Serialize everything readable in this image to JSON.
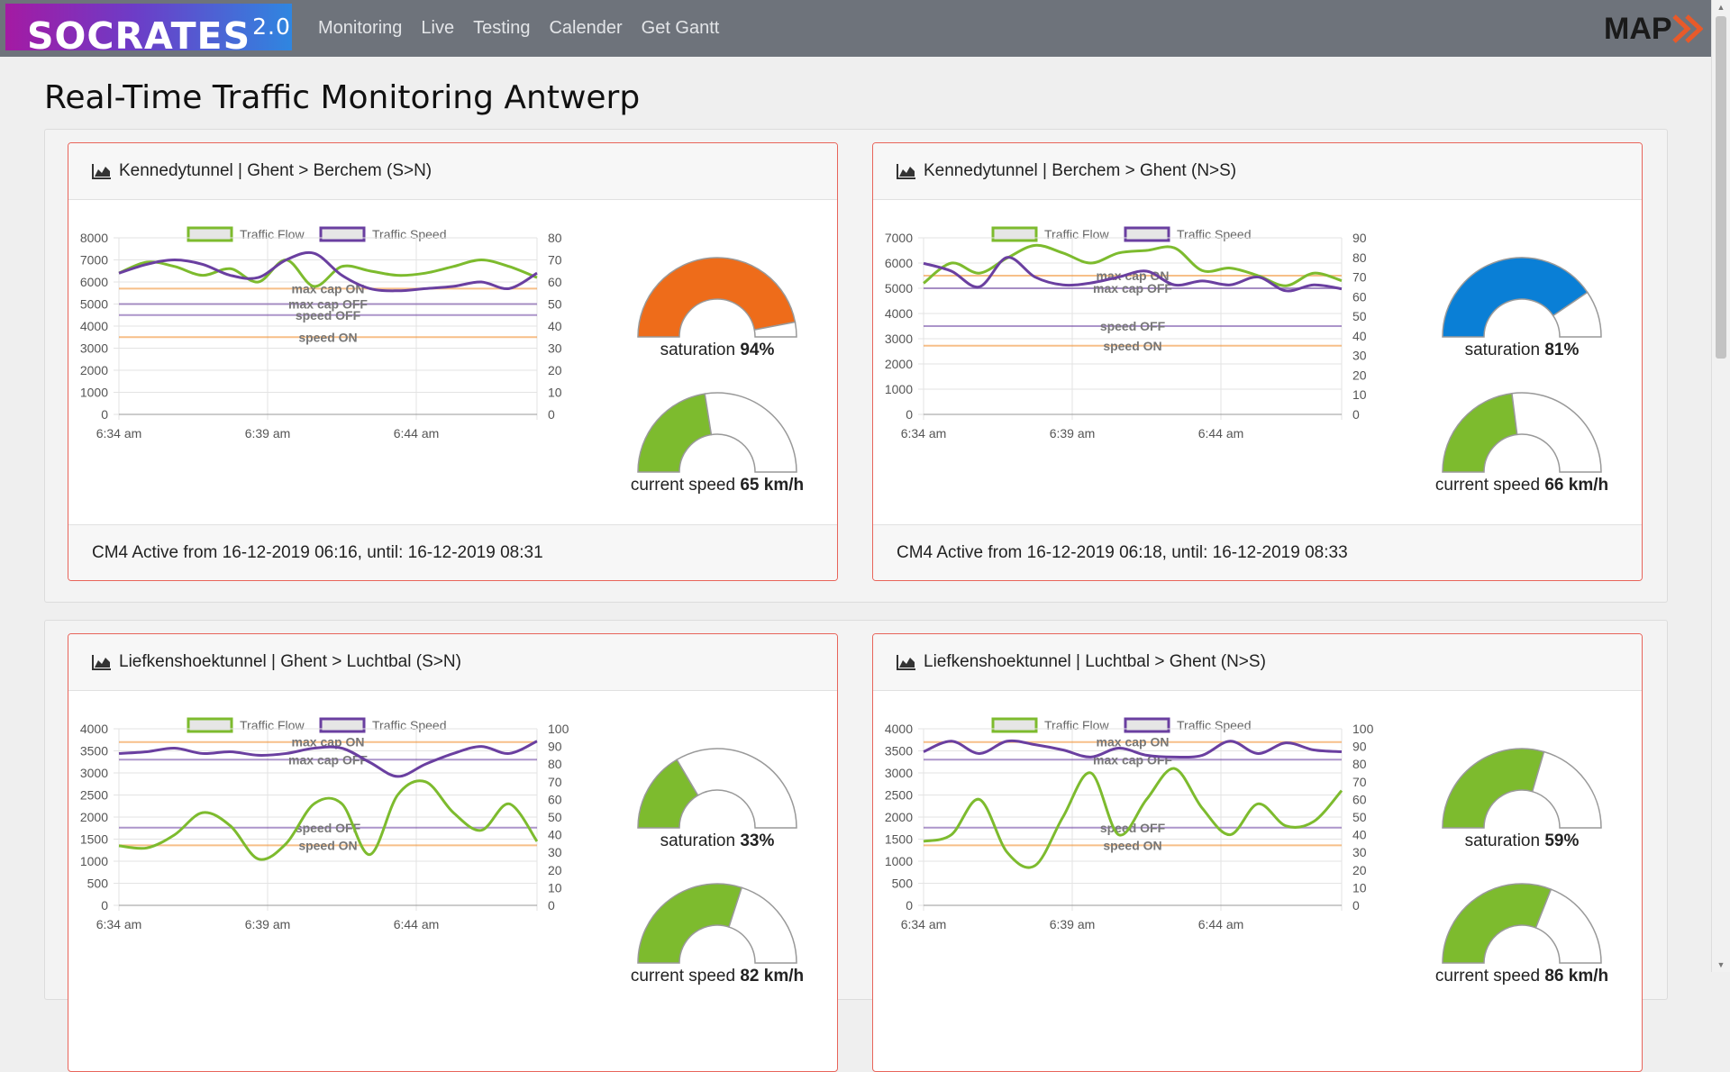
{
  "app": {
    "brand": "SOCRATES",
    "brand_version": "2.0",
    "logo_text": "MAP",
    "nav": [
      "Monitoring",
      "Live",
      "Testing",
      "Calender",
      "Get Gantt"
    ]
  },
  "page_title": "Real-Time Traffic Monitoring Antwerp",
  "colors": {
    "flow": "#7dbb2e",
    "speed": "#6a3fa0",
    "orange": "#f28c28",
    "gauge_orange": "#ee6c1a",
    "gauge_blue": "#0a7fd6",
    "gauge_green": "#7dbb2e"
  },
  "legend": {
    "flow": "Traffic Flow",
    "speed": "Traffic Speed"
  },
  "cards": [
    {
      "title": "Kennedytunnel | Ghent > Berchem (S>N)",
      "footer": "CM4 Active from 16-12-2019 06:16, until: 16-12-2019 08:31",
      "saturation_label": "saturation",
      "saturation_value": "94%",
      "saturation_fraction": 0.94,
      "saturation_color": "#ee6c1a",
      "speed_label": "current speed",
      "speed_value": "65 km/h",
      "speed_fraction": 0.45,
      "chart_data": {
        "type": "line",
        "x_ticks": [
          "6:34 am",
          "6:39 am",
          "6:44 am"
        ],
        "y_left_ticks": [
          "8000",
          "7000",
          "6000",
          "5000",
          "4000",
          "3000",
          "2000",
          "1000",
          "0"
        ],
        "y_right_ticks": [
          "80",
          "70",
          "60",
          "50",
          "40",
          "30",
          "20",
          "10",
          "0"
        ],
        "ylim_left": [
          0,
          8000
        ],
        "ylim_right": [
          0,
          80
        ],
        "series": [
          {
            "name": "Traffic Flow",
            "axis": "left",
            "values": [
              6400,
              6900,
              6700,
              6300,
              6600,
              6000,
              7000,
              5800,
              6700,
              6500,
              6300,
              6400,
              6700,
              7000,
              6700,
              6200
            ]
          },
          {
            "name": "Traffic Speed",
            "axis": "right",
            "values": [
              64,
              68,
              70,
              68,
              63,
              62,
              70,
              73,
              63,
              57,
              56,
              57,
              58,
              60,
              57,
              64
            ]
          }
        ],
        "thresholds": [
          {
            "label": "max cap ON",
            "axis": "left",
            "value": 5700,
            "color": "#f28c28"
          },
          {
            "label": "max cap OFF",
            "axis": "left",
            "value": 5000,
            "color": "#6a3fa0"
          },
          {
            "label": "speed OFF",
            "axis": "right",
            "value": 45,
            "color": "#6a3fa0"
          },
          {
            "label": "speed ON",
            "axis": "right",
            "value": 35,
            "color": "#f28c28"
          }
        ]
      }
    },
    {
      "title": "Kennedytunnel | Berchem > Ghent (N>S)",
      "footer": "CM4 Active from 16-12-2019 06:18, until: 16-12-2019 08:33",
      "saturation_label": "saturation",
      "saturation_value": "81%",
      "saturation_fraction": 0.81,
      "saturation_color": "#0a7fd6",
      "speed_label": "current speed",
      "speed_value": "66 km/h",
      "speed_fraction": 0.46,
      "chart_data": {
        "type": "line",
        "x_ticks": [
          "6:34 am",
          "6:39 am",
          "6:44 am"
        ],
        "y_left_ticks": [
          "7000",
          "6000",
          "5000",
          "4000",
          "3000",
          "2000",
          "1000",
          "0"
        ],
        "y_right_ticks": [
          "90",
          "80",
          "70",
          "60",
          "50",
          "40",
          "30",
          "20",
          "10",
          "0"
        ],
        "ylim_left": [
          0,
          7000
        ],
        "ylim_right": [
          0,
          90
        ],
        "series": [
          {
            "name": "Traffic Flow",
            "axis": "left",
            "values": [
              5200,
              6000,
              5600,
              6200,
              6700,
              6400,
              6000,
              6400,
              6500,
              6600,
              5700,
              5800,
              5500,
              5100,
              5600,
              5300
            ]
          },
          {
            "name": "Traffic Speed",
            "axis": "right",
            "values": [
              77,
              73,
              65,
              80,
              70,
              66,
              67,
              70,
              73,
              66,
              68,
              66,
              70,
              63,
              66,
              64
            ]
          }
        ],
        "thresholds": [
          {
            "label": "max cap ON",
            "axis": "left",
            "value": 5500,
            "color": "#f28c28"
          },
          {
            "label": "max cap OFF",
            "axis": "left",
            "value": 5000,
            "color": "#6a3fa0"
          },
          {
            "label": "speed OFF",
            "axis": "right",
            "value": 45,
            "color": "#6a3fa0"
          },
          {
            "label": "speed ON",
            "axis": "right",
            "value": 35,
            "color": "#f28c28"
          }
        ]
      }
    },
    {
      "title": "Liefkenshoektunnel | Ghent > Luchtbal (S>N)",
      "footer": "",
      "saturation_label": "saturation",
      "saturation_value": "33%",
      "saturation_fraction": 0.33,
      "saturation_color": "#7dbb2e",
      "speed_label": "current speed",
      "speed_value": "82 km/h",
      "speed_fraction": 0.6,
      "chart_data": {
        "type": "line",
        "x_ticks": [
          "6:34 am",
          "6:39 am",
          "6:44 am"
        ],
        "y_left_ticks": [
          "4000",
          "3500",
          "3000",
          "2500",
          "2000",
          "1500",
          "1000",
          "500",
          "0"
        ],
        "y_right_ticks": [
          "100",
          "90",
          "80",
          "70",
          "60",
          "50",
          "40",
          "30",
          "20",
          "10",
          "0"
        ],
        "ylim_left": [
          0,
          4000
        ],
        "ylim_right": [
          0,
          100
        ],
        "series": [
          {
            "name": "Traffic Flow",
            "axis": "left",
            "values": [
              1350,
              1300,
              1600,
              2100,
              1800,
              1050,
              1400,
              2300,
              2300,
              1150,
              2500,
              2800,
              2100,
              1700,
              2300,
              1450
            ]
          },
          {
            "name": "Traffic Speed",
            "axis": "right",
            "values": [
              86,
              87,
              89,
              86,
              87,
              85,
              86,
              89,
              89,
              81,
              73,
              80,
              86,
              90,
              86,
              93
            ]
          }
        ],
        "thresholds": [
          {
            "label": "max cap ON",
            "axis": "left",
            "value": 3700,
            "color": "#f28c28"
          },
          {
            "label": "max cap OFF",
            "axis": "left",
            "value": 3300,
            "color": "#6a3fa0"
          },
          {
            "label": "speed OFF",
            "axis": "right",
            "value": 44,
            "color": "#6a3fa0"
          },
          {
            "label": "speed ON",
            "axis": "right",
            "value": 34,
            "color": "#f28c28"
          }
        ]
      }
    },
    {
      "title": "Liefkenshoektunnel | Luchtbal > Ghent (N>S)",
      "footer": "",
      "saturation_label": "saturation",
      "saturation_value": "59%",
      "saturation_fraction": 0.59,
      "saturation_color": "#7dbb2e",
      "speed_label": "current speed",
      "speed_value": "86 km/h",
      "speed_fraction": 0.62,
      "chart_data": {
        "type": "line",
        "x_ticks": [
          "6:34 am",
          "6:39 am",
          "6:44 am"
        ],
        "y_left_ticks": [
          "4000",
          "3500",
          "3000",
          "2500",
          "2000",
          "1500",
          "1000",
          "500",
          "0"
        ],
        "y_right_ticks": [
          "100",
          "90",
          "80",
          "70",
          "60",
          "50",
          "40",
          "30",
          "20",
          "10",
          "0"
        ],
        "ylim_left": [
          0,
          4000
        ],
        "ylim_right": [
          0,
          100
        ],
        "series": [
          {
            "name": "Traffic Flow",
            "axis": "left",
            "values": [
              1450,
              1600,
              2400,
              1200,
              900,
              2000,
              3000,
              1600,
              2400,
              3100,
              2200,
              1600,
              2300,
              1800,
              1900,
              2600
            ]
          },
          {
            "name": "Traffic Speed",
            "axis": "right",
            "values": [
              87,
              93,
              86,
              93,
              91,
              88,
              84,
              89,
              85,
              84,
              85,
              93,
              86,
              92,
              88,
              87
            ]
          }
        ],
        "thresholds": [
          {
            "label": "max cap ON",
            "axis": "left",
            "value": 3700,
            "color": "#f28c28"
          },
          {
            "label": "max cap OFF",
            "axis": "left",
            "value": 3300,
            "color": "#6a3fa0"
          },
          {
            "label": "speed OFF",
            "axis": "right",
            "value": 44,
            "color": "#6a3fa0"
          },
          {
            "label": "speed ON",
            "axis": "right",
            "value": 34,
            "color": "#f28c28"
          }
        ]
      }
    }
  ]
}
